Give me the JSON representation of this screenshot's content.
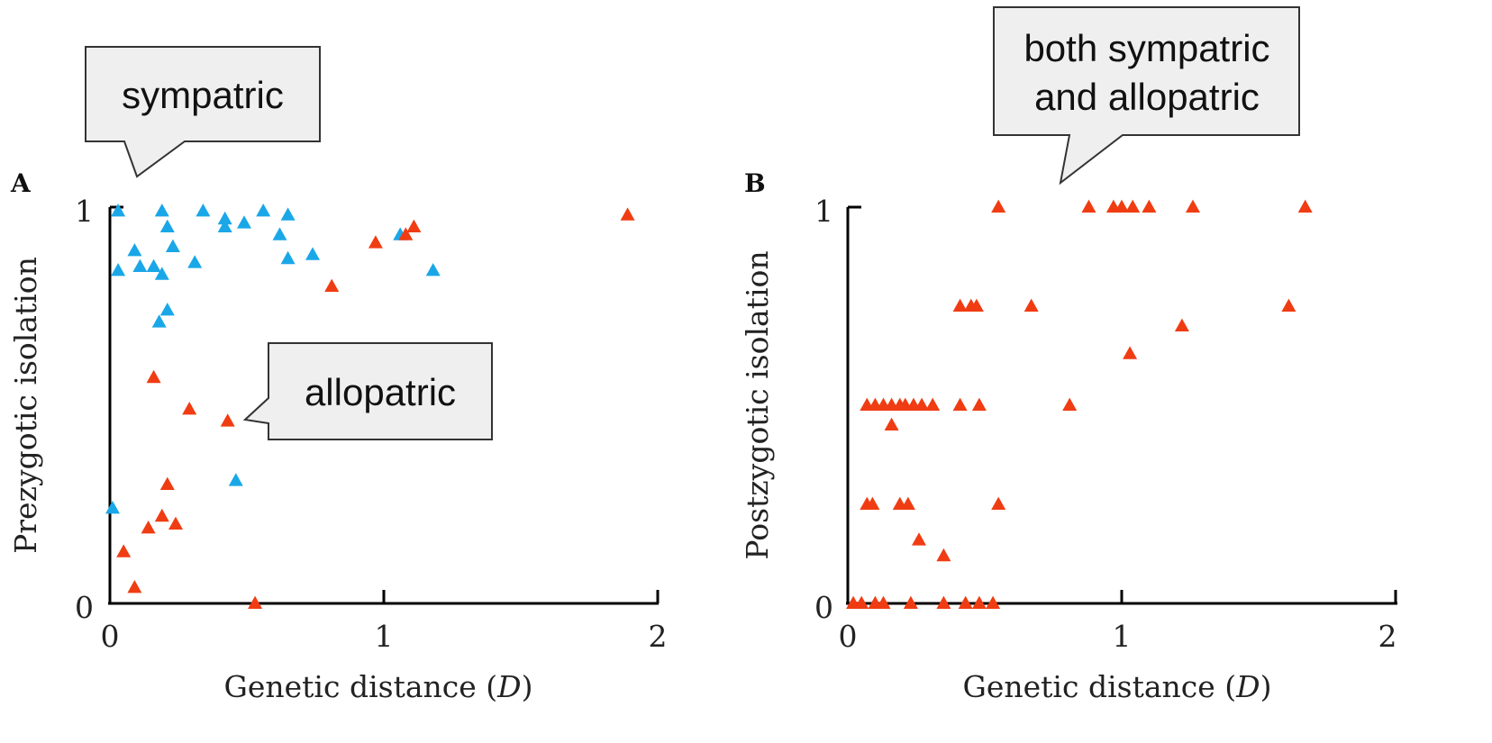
{
  "colors": {
    "sympatric": "#1aa7e8",
    "allopatric": "#f03c12",
    "axis": "#000000",
    "callout_fill": "#efefef"
  },
  "callouts": {
    "a_sympatric": [
      "sympatric"
    ],
    "a_allopatric": [
      "allopatric"
    ],
    "b_both": [
      "both sympatric",
      "and allopatric"
    ]
  },
  "chart_data": [
    {
      "panel": "A",
      "type": "scatter",
      "xlabel": "Genetic distance (D)",
      "ylabel": "Prezygotic isolation",
      "xlim": [
        0,
        2
      ],
      "ylim": [
        0,
        1
      ],
      "xticks": [
        "0",
        "1",
        "2"
      ],
      "yticks": [
        "0",
        "1"
      ],
      "grid": false,
      "series": [
        {
          "key": "sympatric",
          "color": "#1aa7e8",
          "marker": "triangle",
          "points": [
            [
              0.03,
              0.99
            ],
            [
              0.19,
              0.99
            ],
            [
              0.34,
              0.99
            ],
            [
              0.56,
              0.99
            ],
            [
              0.42,
              0.97
            ],
            [
              0.49,
              0.96
            ],
            [
              0.65,
              0.98
            ],
            [
              0.21,
              0.95
            ],
            [
              0.42,
              0.95
            ],
            [
              0.62,
              0.93
            ],
            [
              0.09,
              0.89
            ],
            [
              0.23,
              0.9
            ],
            [
              0.74,
              0.88
            ],
            [
              0.31,
              0.86
            ],
            [
              0.65,
              0.87
            ],
            [
              0.11,
              0.85
            ],
            [
              0.16,
              0.85
            ],
            [
              0.19,
              0.83
            ],
            [
              0.03,
              0.84
            ],
            [
              1.06,
              0.93
            ],
            [
              1.18,
              0.84
            ],
            [
              0.21,
              0.74
            ],
            [
              0.18,
              0.71
            ],
            [
              0.46,
              0.31
            ],
            [
              0.01,
              0.24
            ]
          ]
        },
        {
          "key": "allopatric",
          "color": "#f03c12",
          "marker": "triangle",
          "points": [
            [
              1.89,
              0.98
            ],
            [
              1.11,
              0.95
            ],
            [
              1.08,
              0.93
            ],
            [
              0.97,
              0.91
            ],
            [
              0.81,
              0.8
            ],
            [
              0.16,
              0.57
            ],
            [
              0.29,
              0.49
            ],
            [
              0.43,
              0.46
            ],
            [
              0.21,
              0.3
            ],
            [
              0.19,
              0.22
            ],
            [
              0.24,
              0.2
            ],
            [
              0.14,
              0.19
            ],
            [
              0.05,
              0.13
            ],
            [
              0.09,
              0.04
            ],
            [
              0.53,
              0.0
            ]
          ]
        }
      ]
    },
    {
      "panel": "B",
      "type": "scatter",
      "xlabel": "Genetic distance (D)",
      "ylabel": "Postzygotic isolation",
      "xlim": [
        0,
        2
      ],
      "ylim": [
        0,
        1
      ],
      "xticks": [
        "0",
        "1",
        "2"
      ],
      "yticks": [
        "0",
        "1"
      ],
      "grid": false,
      "series": [
        {
          "key": "allopatric",
          "color": "#f03c12",
          "marker": "triangle",
          "points": [
            [
              0.55,
              1.0
            ],
            [
              0.88,
              1.0
            ],
            [
              0.97,
              1.0
            ],
            [
              1.0,
              1.0
            ],
            [
              1.04,
              1.0
            ],
            [
              1.1,
              1.0
            ],
            [
              1.26,
              1.0
            ],
            [
              1.67,
              1.0
            ],
            [
              0.41,
              0.75
            ],
            [
              0.45,
              0.75
            ],
            [
              0.47,
              0.75
            ],
            [
              0.67,
              0.75
            ],
            [
              1.61,
              0.75
            ],
            [
              1.22,
              0.7
            ],
            [
              1.03,
              0.63
            ],
            [
              0.07,
              0.5
            ],
            [
              0.1,
              0.5
            ],
            [
              0.13,
              0.5
            ],
            [
              0.16,
              0.5
            ],
            [
              0.19,
              0.5
            ],
            [
              0.21,
              0.5
            ],
            [
              0.24,
              0.5
            ],
            [
              0.27,
              0.5
            ],
            [
              0.31,
              0.5
            ],
            [
              0.41,
              0.5
            ],
            [
              0.48,
              0.5
            ],
            [
              0.81,
              0.5
            ],
            [
              0.16,
              0.45
            ],
            [
              0.07,
              0.25
            ],
            [
              0.09,
              0.25
            ],
            [
              0.19,
              0.25
            ],
            [
              0.22,
              0.25
            ],
            [
              0.55,
              0.25
            ],
            [
              0.26,
              0.16
            ],
            [
              0.35,
              0.12
            ],
            [
              0.02,
              0.0
            ],
            [
              0.05,
              0.0
            ],
            [
              0.1,
              0.0
            ],
            [
              0.13,
              0.0
            ],
            [
              0.23,
              0.0
            ],
            [
              0.35,
              0.0
            ],
            [
              0.43,
              0.0
            ],
            [
              0.48,
              0.0
            ],
            [
              0.53,
              0.0
            ]
          ]
        }
      ]
    }
  ]
}
